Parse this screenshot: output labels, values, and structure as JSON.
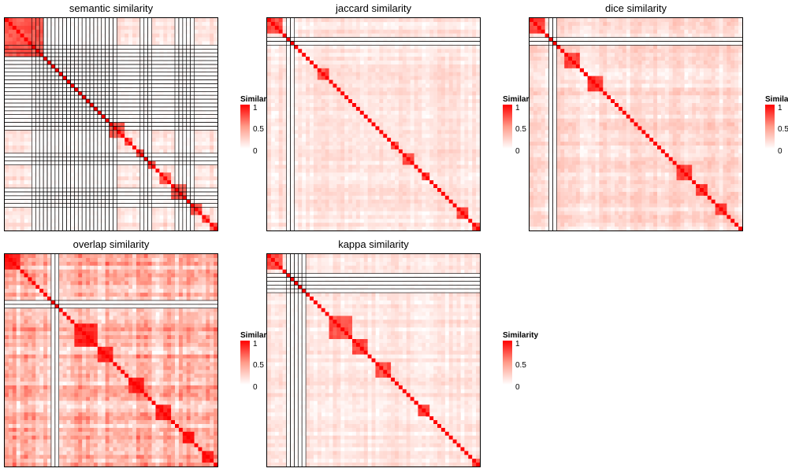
{
  "colors": {
    "low": "#ffffff",
    "mid": "#ff9c8a",
    "high": "#ff0000",
    "border": "#000000"
  },
  "legend": {
    "title": "Similarity",
    "ticks": [
      "1",
      "0.5",
      "0"
    ]
  },
  "chart_data": [
    {
      "type": "heatmap",
      "title": "semantic similarity",
      "size": 55,
      "clusters": [
        10,
        1,
        1,
        1,
        1,
        1,
        1,
        1,
        1,
        1,
        1,
        1,
        1,
        1,
        1,
        1,
        1,
        1,
        4,
        2,
        1,
        2,
        1,
        2,
        1,
        3,
        4,
        1,
        3,
        2,
        2,
        1,
        1,
        2,
        1
      ],
      "background": 0.14,
      "within": 0.72,
      "blank_indices": [
        7,
        8,
        9,
        10,
        11,
        12,
        13,
        14,
        15,
        16,
        17,
        18,
        19,
        20,
        21,
        22,
        23,
        24,
        25,
        26,
        27,
        28,
        35,
        36,
        37,
        44,
        45,
        46,
        47,
        48
      ],
      "zlim": [
        0,
        1
      ]
    },
    {
      "type": "heatmap",
      "title": "jaccard similarity",
      "size": 55,
      "clusters": [
        4,
        1,
        1,
        1,
        1,
        1,
        1,
        1,
        1,
        1,
        3,
        1,
        1,
        1,
        1,
        1,
        1,
        1,
        1,
        1,
        1,
        1,
        1,
        1,
        1,
        1,
        1,
        2,
        1,
        3,
        1,
        1,
        2,
        1,
        1,
        1,
        1,
        1,
        1,
        1,
        3,
        1,
        2,
        4,
        1,
        1,
        1,
        1,
        4
      ],
      "background": 0.12,
      "within": 0.75,
      "blank_indices": [
        5,
        6
      ],
      "zlim": [
        0,
        1
      ]
    },
    {
      "type": "heatmap",
      "title": "dice similarity",
      "size": 55,
      "clusters": [
        4,
        1,
        1,
        1,
        1,
        1,
        4,
        1,
        1,
        4,
        1,
        1,
        1,
        1,
        1,
        1,
        1,
        1,
        1,
        1,
        1,
        1,
        1,
        1,
        1,
        1,
        1,
        1,
        1,
        4,
        1,
        3,
        1,
        1,
        3,
        1,
        1,
        1,
        1,
        1,
        1,
        1,
        1,
        1,
        1,
        1,
        1,
        1,
        3,
        1,
        1
      ],
      "background": 0.15,
      "within": 0.8,
      "blank_indices": [
        5,
        6
      ],
      "zlim": [
        0,
        1
      ]
    },
    {
      "type": "heatmap",
      "title": "overlap similarity",
      "size": 55,
      "clusters": [
        4,
        1,
        1,
        1,
        1,
        1,
        1,
        1,
        1,
        1,
        1,
        1,
        1,
        1,
        1,
        6,
        4,
        1,
        1,
        1,
        1,
        4,
        1,
        1,
        1,
        4,
        1,
        1,
        1,
        3,
        1,
        1,
        3,
        1,
        1,
        2,
        1,
        1,
        1,
        1,
        1,
        1,
        1,
        1,
        1,
        1,
        1,
        1,
        1
      ],
      "background": 0.32,
      "within": 0.9,
      "blank_indices": [
        12,
        13
      ],
      "zlim": [
        0,
        1
      ]
    },
    {
      "type": "heatmap",
      "title": "kappa similarity",
      "size": 55,
      "clusters": [
        4,
        1,
        1,
        1,
        1,
        1,
        1,
        1,
        1,
        1,
        1,
        1,
        1,
        6,
        4,
        1,
        1,
        4,
        1,
        1,
        1,
        1,
        1,
        1,
        1,
        3,
        1,
        1,
        1,
        1,
        1,
        1,
        1,
        1,
        1,
        1,
        1,
        3,
        1,
        4,
        1,
        1,
        3
      ],
      "background": 0.12,
      "within": 0.75,
      "blank_indices": [
        5,
        6,
        7,
        8,
        9
      ],
      "zlim": [
        0,
        1
      ]
    }
  ]
}
